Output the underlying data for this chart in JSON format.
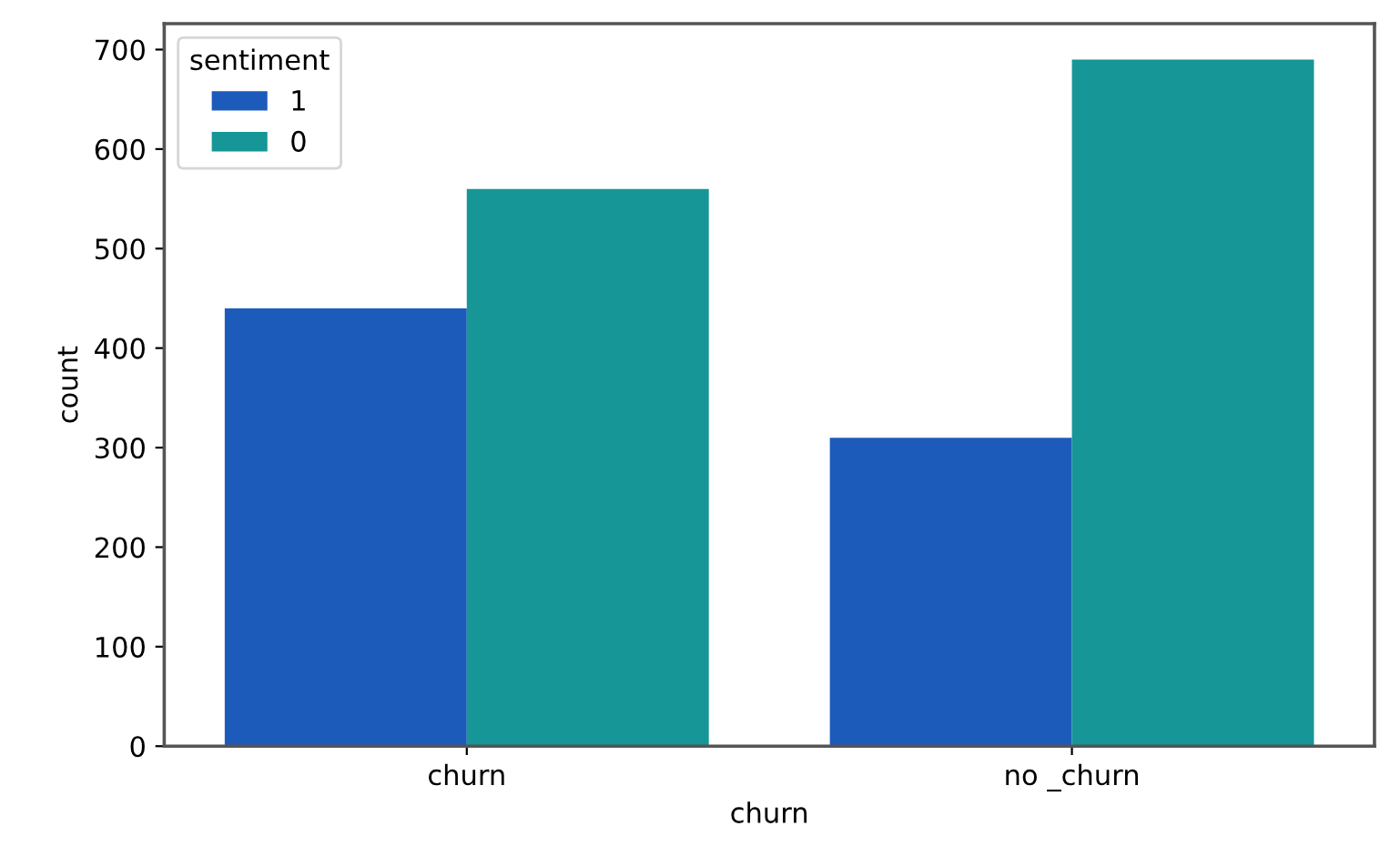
{
  "chart_data": {
    "type": "bar",
    "xlabel": "churn",
    "ylabel": "count",
    "legend_title": "sentiment",
    "categories": [
      "churn",
      "no _churn"
    ],
    "series": [
      {
        "name": "1",
        "color": "#1c5bba",
        "values": [
          440,
          310
        ]
      },
      {
        "name": "0",
        "color": "#169696",
        "values": [
          560,
          690
        ]
      }
    ],
    "ylim": [
      0,
      726
    ],
    "yticks": [
      0,
      100,
      200,
      300,
      400,
      500,
      600,
      700
    ],
    "grid": false,
    "legend": "top left"
  }
}
